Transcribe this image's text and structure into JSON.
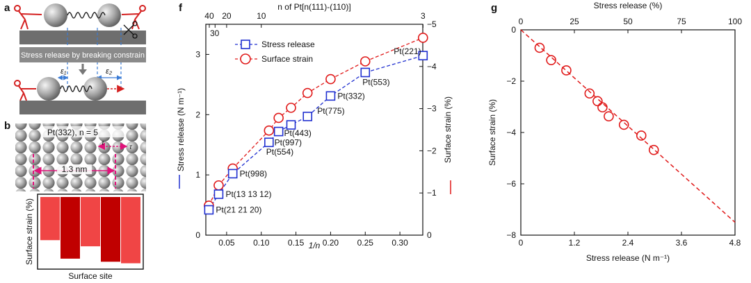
{
  "panels": {
    "a": "a",
    "b": "b",
    "f": "f",
    "g": "g"
  },
  "panel_a": {
    "banner": "Stress release by breaking constrain",
    "eps1": "ε₁",
    "eps2": "ε₂",
    "colors": {
      "atom": "#9a9a9a",
      "substrate": "#6e6e6e",
      "arrow": "#d42020",
      "dash": "#3a7bd5"
    }
  },
  "panel_b": {
    "title": "Pt(332), n = 5",
    "tau": "τ",
    "scale": "1.3 nm",
    "ylabel": "Surface strain (%)",
    "xlabel": "Surface site",
    "bars": [
      -2.8,
      -4.0,
      -3.2,
      -4.2,
      -4.3
    ],
    "bar_colors": [
      "#f04545",
      "#c00000",
      "#f04545",
      "#c00000",
      "#f04545"
    ]
  },
  "chart_data": [
    {
      "id": "f",
      "type": "scatter",
      "xlabel": "1/n",
      "ylabel": "Stress release (N m⁻¹)",
      "y2label": "Surface strain (%)",
      "x2label": "n of Pt[n(111)-(110)]",
      "xlim": [
        0.02,
        0.333
      ],
      "ylim": [
        0,
        3.5
      ],
      "y2lim": [
        0,
        -5
      ],
      "xticks": [
        0.05,
        0.1,
        0.15,
        0.2,
        0.25,
        0.3
      ],
      "xtick_labels": [
        "0.05",
        "0.10",
        "0.15",
        "0.20",
        "0.25",
        "0.30"
      ],
      "yticks": [
        0,
        1,
        2,
        3
      ],
      "y2ticks": [
        0,
        -1,
        -2,
        -3,
        -4,
        -5
      ],
      "x2ticks": [
        40,
        30,
        20,
        10,
        3
      ],
      "series": [
        {
          "name": "Stress release",
          "color": "#1f2fd0",
          "marker": "square",
          "x": [
            0.0244,
            0.0385,
            0.0588,
            0.1111,
            0.125,
            0.1429,
            0.1667,
            0.2,
            0.25,
            0.3333
          ],
          "y": [
            0.42,
            0.68,
            1.02,
            1.54,
            1.72,
            1.83,
            1.97,
            2.31,
            2.7,
            2.98
          ]
        },
        {
          "name": "Surface strain",
          "color": "#e01818",
          "marker": "circle",
          "x": [
            0.0244,
            0.0385,
            0.0588,
            0.1111,
            0.125,
            0.1429,
            0.1667,
            0.2,
            0.25,
            0.3333
          ],
          "y": [
            -0.7,
            -1.18,
            -1.58,
            -2.48,
            -2.78,
            -3.02,
            -3.37,
            -3.7,
            -4.12,
            -4.68
          ]
        }
      ],
      "labels": [
        "Pt(21 21 20)",
        "Pt(13 13 12)",
        "Pt(998)",
        "Pt(554)",
        "Pt(997)",
        "Pt(443)",
        "Pt(775)",
        "Pt(332)",
        "Pt(553)",
        "Pt(221)"
      ],
      "legend": [
        "Stress release",
        "Surface strain"
      ]
    },
    {
      "id": "g",
      "type": "scatter",
      "xlabel": "Stress release (N m⁻¹)",
      "ylabel": "Surface strain (%)",
      "x2label": "Stress release (%)",
      "xlim": [
        0,
        4.8
      ],
      "ylim": [
        -8,
        0
      ],
      "x2lim": [
        0,
        100
      ],
      "xticks": [
        0,
        1.2,
        2.4,
        3.6,
        4.8
      ],
      "xtick_labels": [
        "0",
        "1.2",
        "2.4",
        "3.6",
        "4.8"
      ],
      "yticks": [
        0,
        -2,
        -4,
        -6,
        -8
      ],
      "x2ticks": [
        0,
        25,
        50,
        75,
        100
      ],
      "x": [
        0.42,
        0.68,
        1.02,
        1.54,
        1.72,
        1.83,
        1.97,
        2.31,
        2.7,
        2.98
      ],
      "y": [
        -0.7,
        -1.18,
        -1.58,
        -2.48,
        -2.78,
        -3.02,
        -3.37,
        -3.7,
        -4.12,
        -4.68
      ],
      "fit": {
        "x": [
          0,
          4.8
        ],
        "y": [
          0,
          -7.5
        ]
      },
      "color": "#e01818"
    }
  ]
}
